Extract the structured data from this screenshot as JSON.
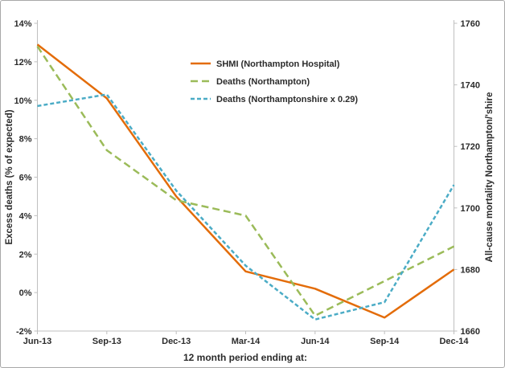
{
  "window": {
    "background_color": "#ffffff",
    "border_color": "#a8a8a8"
  },
  "chart_data": {
    "type": "line",
    "title": "",
    "xlabel": "12 month period ending at:",
    "categories": [
      "Jun-13",
      "Sep-13",
      "Dec-13",
      "Mar-14",
      "Jun-14",
      "Sep-14",
      "Dec-14"
    ],
    "grid": false,
    "legend_position": "inside-top-center",
    "left_axis": {
      "title": "Excess deaths (% of expected)",
      "min": -2,
      "max": 14,
      "step": 2,
      "tick_labels": [
        "-2%",
        "0%",
        "2%",
        "4%",
        "6%",
        "8%",
        "10%",
        "12%",
        "14%"
      ],
      "format": "percent"
    },
    "right_axis": {
      "title": "All-cause mortality Northampton/'shire",
      "min": 1660,
      "max": 1760,
      "step": 20,
      "tick_labels": [
        "1660",
        "1680",
        "1700",
        "1720",
        "1740",
        "1760"
      ]
    },
    "series": [
      {
        "name": "SHMI (Northampton Hospital)",
        "color": "#e36c09",
        "style": "solid",
        "plotted_against": "left",
        "values_pct": [
          12.9,
          10.1,
          5.0,
          1.1,
          0.2,
          -1.3,
          1.2
        ]
      },
      {
        "name": "Deaths (Northampton)",
        "color": "#9bbb59",
        "style": "dashed-long",
        "plotted_against": "right",
        "values_pct": [
          12.8,
          7.4,
          4.8,
          4.0,
          -1.2,
          0.6,
          2.4
        ],
        "values_right_axis": [
          1753,
          1719,
          1703,
          1698,
          1665,
          1676,
          1688
        ]
      },
      {
        "name": "Deaths (Northamptonshire x 0.29)",
        "color": "#4bacc6",
        "style": "dashed-short",
        "plotted_against": "right",
        "values_pct": [
          9.7,
          10.3,
          5.3,
          1.4,
          -1.4,
          -0.5,
          5.6
        ],
        "values_right_axis": [
          1733,
          1737,
          1706,
          1681,
          1664,
          1669,
          1708
        ]
      }
    ]
  }
}
